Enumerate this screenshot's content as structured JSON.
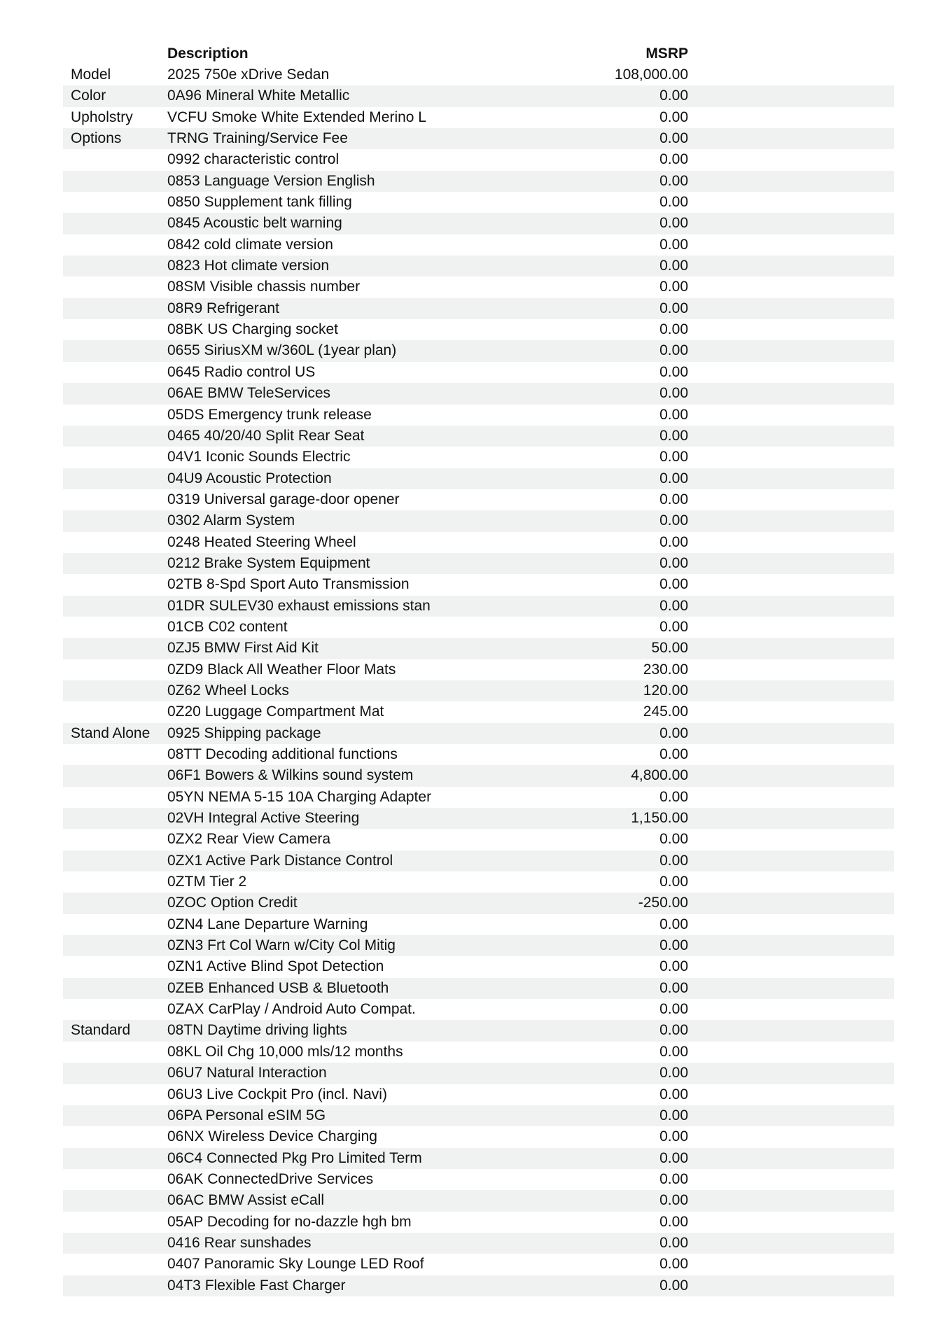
{
  "header": {
    "description": "Description",
    "msrp": "MSRP"
  },
  "rows": [
    {
      "category": "Model",
      "description": "2025 750e xDrive Sedan",
      "msrp": "108,000.00"
    },
    {
      "category": "Color",
      "description": "0A96 Mineral White Metallic",
      "msrp": "0.00"
    },
    {
      "category": "Upholstry",
      "description": "VCFU Smoke White Extended Merino L",
      "msrp": "0.00"
    },
    {
      "category": "Options",
      "description": "TRNG Training/Service Fee",
      "msrp": "0.00"
    },
    {
      "category": "",
      "description": "0992 characteristic control",
      "msrp": "0.00"
    },
    {
      "category": "",
      "description": "0853 Language Version English",
      "msrp": "0.00"
    },
    {
      "category": "",
      "description": "0850 Supplement tank filling",
      "msrp": "0.00"
    },
    {
      "category": "",
      "description": "0845 Acoustic belt warning",
      "msrp": "0.00"
    },
    {
      "category": "",
      "description": "0842 cold climate version",
      "msrp": "0.00"
    },
    {
      "category": "",
      "description": "0823 Hot climate version",
      "msrp": "0.00"
    },
    {
      "category": "",
      "description": "08SM Visible chassis number",
      "msrp": "0.00"
    },
    {
      "category": "",
      "description": "08R9 Refrigerant",
      "msrp": "0.00"
    },
    {
      "category": "",
      "description": "08BK US Charging socket",
      "msrp": "0.00"
    },
    {
      "category": "",
      "description": "0655 SiriusXM w/360L (1year plan)",
      "msrp": "0.00"
    },
    {
      "category": "",
      "description": "0645 Radio control US",
      "msrp": "0.00"
    },
    {
      "category": "",
      "description": "06AE BMW TeleServices",
      "msrp": "0.00"
    },
    {
      "category": "",
      "description": "05DS Emergency trunk release",
      "msrp": "0.00"
    },
    {
      "category": "",
      "description": "0465 40/20/40 Split Rear Seat",
      "msrp": "0.00"
    },
    {
      "category": "",
      "description": "04V1 Iconic Sounds Electric",
      "msrp": "0.00"
    },
    {
      "category": "",
      "description": "04U9 Acoustic Protection",
      "msrp": "0.00"
    },
    {
      "category": "",
      "description": "0319 Universal garage-door opener",
      "msrp": "0.00"
    },
    {
      "category": "",
      "description": "0302 Alarm System",
      "msrp": "0.00"
    },
    {
      "category": "",
      "description": "0248 Heated Steering Wheel",
      "msrp": "0.00"
    },
    {
      "category": "",
      "description": "0212 Brake System Equipment",
      "msrp": "0.00"
    },
    {
      "category": "",
      "description": "02TB 8-Spd Sport Auto Transmission",
      "msrp": "0.00"
    },
    {
      "category": "",
      "description": "01DR SULEV30 exhaust emissions stan",
      "msrp": "0.00"
    },
    {
      "category": "",
      "description": "01CB C02 content",
      "msrp": "0.00"
    },
    {
      "category": "",
      "description": "0ZJ5 BMW First Aid Kit",
      "msrp": "50.00"
    },
    {
      "category": "",
      "description": "0ZD9 Black All Weather Floor Mats",
      "msrp": "230.00"
    },
    {
      "category": "",
      "description": "0Z62 Wheel Locks",
      "msrp": "120.00"
    },
    {
      "category": "",
      "description": "0Z20 Luggage Compartment Mat",
      "msrp": "245.00"
    },
    {
      "category": "Stand Alone",
      "description": "0925 Shipping package",
      "msrp": "0.00"
    },
    {
      "category": "",
      "description": "08TT Decoding additional functions",
      "msrp": "0.00"
    },
    {
      "category": "",
      "description": "06F1 Bowers & Wilkins sound system",
      "msrp": "4,800.00"
    },
    {
      "category": "",
      "description": "05YN NEMA 5-15 10A Charging Adapter",
      "msrp": "0.00"
    },
    {
      "category": "",
      "description": "02VH Integral Active Steering",
      "msrp": "1,150.00"
    },
    {
      "category": "",
      "description": "0ZX2 Rear View Camera",
      "msrp": "0.00"
    },
    {
      "category": "",
      "description": "0ZX1 Active Park Distance Control",
      "msrp": "0.00"
    },
    {
      "category": "",
      "description": "0ZTM Tier 2",
      "msrp": "0.00"
    },
    {
      "category": "",
      "description": "0ZOC Option Credit",
      "msrp": "-250.00"
    },
    {
      "category": "",
      "description": "0ZN4 Lane Departure Warning",
      "msrp": "0.00"
    },
    {
      "category": "",
      "description": "0ZN3 Frt Col Warn w/City Col Mitig",
      "msrp": "0.00"
    },
    {
      "category": "",
      "description": "0ZN1 Active Blind Spot Detection",
      "msrp": "0.00"
    },
    {
      "category": "",
      "description": "0ZEB Enhanced USB & Bluetooth",
      "msrp": "0.00"
    },
    {
      "category": "",
      "description": "0ZAX CarPlay / Android Auto Compat.",
      "msrp": "0.00"
    },
    {
      "category": "Standard",
      "description": "08TN Daytime driving lights",
      "msrp": "0.00"
    },
    {
      "category": "",
      "description": "08KL Oil Chg 10,000 mls/12 months",
      "msrp": "0.00"
    },
    {
      "category": "",
      "description": "06U7 Natural Interaction",
      "msrp": "0.00"
    },
    {
      "category": "",
      "description": "06U3 Live Cockpit Pro (incl. Navi)",
      "msrp": "0.00"
    },
    {
      "category": "",
      "description": "06PA Personal eSIM 5G",
      "msrp": "0.00"
    },
    {
      "category": "",
      "description": "06NX Wireless Device Charging",
      "msrp": "0.00"
    },
    {
      "category": "",
      "description": "06C4 Connected Pkg Pro Limited Term",
      "msrp": "0.00"
    },
    {
      "category": "",
      "description": "06AK ConnectedDrive Services",
      "msrp": "0.00"
    },
    {
      "category": "",
      "description": "06AC BMW Assist eCall",
      "msrp": "0.00"
    },
    {
      "category": "",
      "description": "05AP Decoding for no-dazzle hgh bm",
      "msrp": "0.00"
    },
    {
      "category": "",
      "description": "0416 Rear sunshades",
      "msrp": "0.00"
    },
    {
      "category": "",
      "description": "0407 Panoramic Sky Lounge LED Roof",
      "msrp": "0.00"
    },
    {
      "category": "",
      "description": "04T3 Flexible Fast Charger",
      "msrp": "0.00"
    }
  ]
}
